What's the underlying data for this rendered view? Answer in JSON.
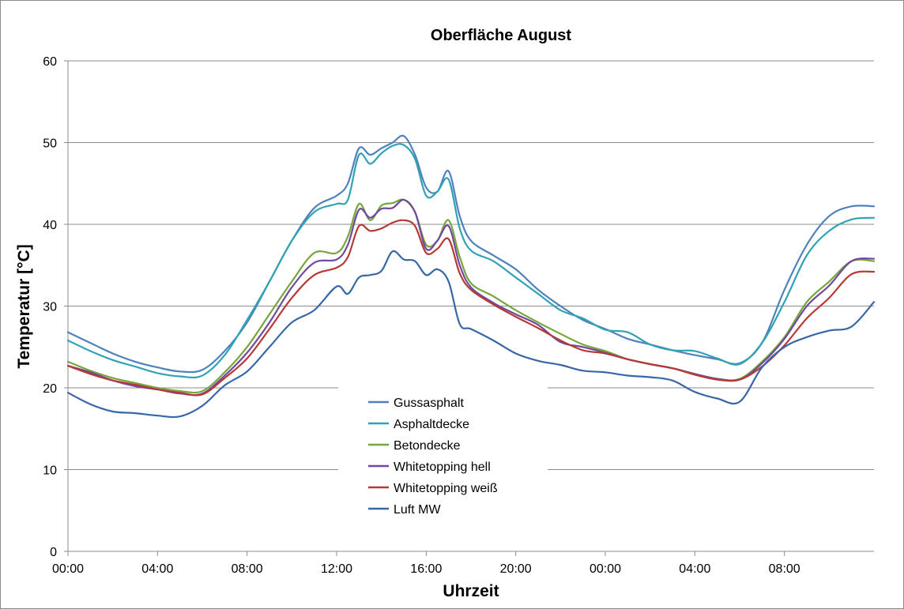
{
  "chart_data": {
    "type": "line",
    "title": "Oberfläche August",
    "xlabel": "Uhrzeit",
    "ylabel": "Temperatur [°C]",
    "ylim": [
      0,
      60
    ],
    "yticks": [
      0,
      10,
      20,
      30,
      40,
      50,
      60
    ],
    "xlim": [
      0,
      36
    ],
    "xtick_values": [
      0,
      4,
      8,
      12,
      16,
      20,
      24,
      28,
      32
    ],
    "xtick_labels": [
      "00:00",
      "04:00",
      "08:00",
      "12:00",
      "16:00",
      "20:00",
      "00:00",
      "04:00",
      "08:00"
    ],
    "x_unit_note": "hours",
    "grid": "horizontal",
    "legend_position": "center-bottom",
    "x": [
      0,
      1,
      2,
      3,
      4,
      5,
      6,
      7,
      8,
      9,
      10,
      11,
      12,
      12.5,
      13,
      13.5,
      14,
      14.5,
      15,
      15.5,
      16,
      16.5,
      17,
      17.5,
      18,
      19,
      20,
      21,
      22,
      23,
      24,
      25,
      26,
      27,
      28,
      29,
      30,
      31,
      32,
      33,
      34,
      35,
      36
    ],
    "series": [
      {
        "name": "Gussasphalt",
        "color": "#4f81bd",
        "values": [
          26.8,
          25.5,
          24.2,
          23.2,
          22.5,
          22,
          22.2,
          24.5,
          28,
          33,
          38,
          42,
          43.5,
          45,
          49.3,
          48.5,
          49.3,
          50,
          50.8,
          48.5,
          44.5,
          44,
          46.5,
          41,
          38,
          36.2,
          34.5,
          32,
          30,
          28.3,
          27.2,
          26,
          25.3,
          24.6,
          24,
          23.5,
          23,
          25.5,
          32,
          37.5,
          41,
          42.2,
          42.2
        ]
      },
      {
        "name": "Asphaltdecke",
        "color": "#31a2b3",
        "values": [
          25.8,
          24.5,
          23.4,
          22.6,
          21.8,
          21.4,
          21.5,
          24,
          28.3,
          33,
          38,
          41.5,
          42.5,
          43,
          48.5,
          47.4,
          48.7,
          49.6,
          49.7,
          48,
          43.5,
          44,
          45.5,
          39.5,
          36.8,
          35.5,
          33.5,
          31.5,
          29.5,
          28.5,
          27.1,
          26.8,
          25.3,
          24.6,
          24.5,
          23.6,
          22.9,
          25.5,
          30.5,
          36.2,
          39.2,
          40.6,
          40.8
        ]
      },
      {
        "name": "Betondecke",
        "color": "#77a63b",
        "values": [
          23.2,
          22.1,
          21.2,
          20.6,
          20,
          19.6,
          19.6,
          21.9,
          25,
          29,
          33,
          36.5,
          36.5,
          38.5,
          42.5,
          40.5,
          42.3,
          42.6,
          43,
          41.5,
          37.5,
          38,
          40.5,
          36,
          32.8,
          31.2,
          29.5,
          28,
          26.6,
          25.3,
          24.5,
          23.5,
          22.9,
          22.4,
          21.7,
          21.1,
          21.1,
          23.2,
          26.2,
          30.5,
          33,
          35.5,
          35.5
        ]
      },
      {
        "name": "Whitetopping hell",
        "color": "#7049a0",
        "values": [
          22.7,
          21.9,
          20.9,
          20.2,
          19.8,
          19.3,
          19.3,
          21.5,
          24.3,
          28,
          32.3,
          35.3,
          35.7,
          37.5,
          41.8,
          40.8,
          41.9,
          42,
          43,
          41.5,
          37,
          38,
          39.8,
          35,
          32.3,
          30.4,
          29,
          27.7,
          25.6,
          25,
          24.3,
          23.5,
          22.9,
          22.4,
          21.7,
          21.1,
          21,
          23,
          26,
          30,
          32.5,
          35.5,
          35.8
        ]
      },
      {
        "name": "Whitetopping weiß",
        "color": "#b53a35",
        "values": [
          22.7,
          21.7,
          20.9,
          20.4,
          19.8,
          19.4,
          19.2,
          21.2,
          23.6,
          27.2,
          31,
          33.8,
          34.7,
          36,
          39.8,
          39.2,
          39.5,
          40.2,
          40.5,
          39.8,
          36.5,
          37,
          38.2,
          34,
          32,
          30.2,
          28.7,
          27.3,
          25.8,
          24.6,
          24.2,
          23.5,
          22.9,
          22.4,
          21.6,
          21,
          21,
          22.6,
          25.2,
          28.5,
          31,
          33.9,
          34.2
        ]
      },
      {
        "name": "Luft MW",
        "color": "#3867a5",
        "values": [
          19.4,
          18,
          17.1,
          16.9,
          16.6,
          16.5,
          17.8,
          20.3,
          22,
          25,
          28,
          29.5,
          32.4,
          31.5,
          33.5,
          33.8,
          34.3,
          36.7,
          35.7,
          35.5,
          33.8,
          34.5,
          33,
          27.8,
          27.2,
          25.8,
          24.2,
          23.3,
          22.8,
          22.1,
          21.9,
          21.5,
          21.3,
          20.9,
          19.5,
          18.7,
          18.3,
          22.5,
          25,
          26.2,
          27,
          27.5,
          30.5
        ]
      }
    ]
  }
}
